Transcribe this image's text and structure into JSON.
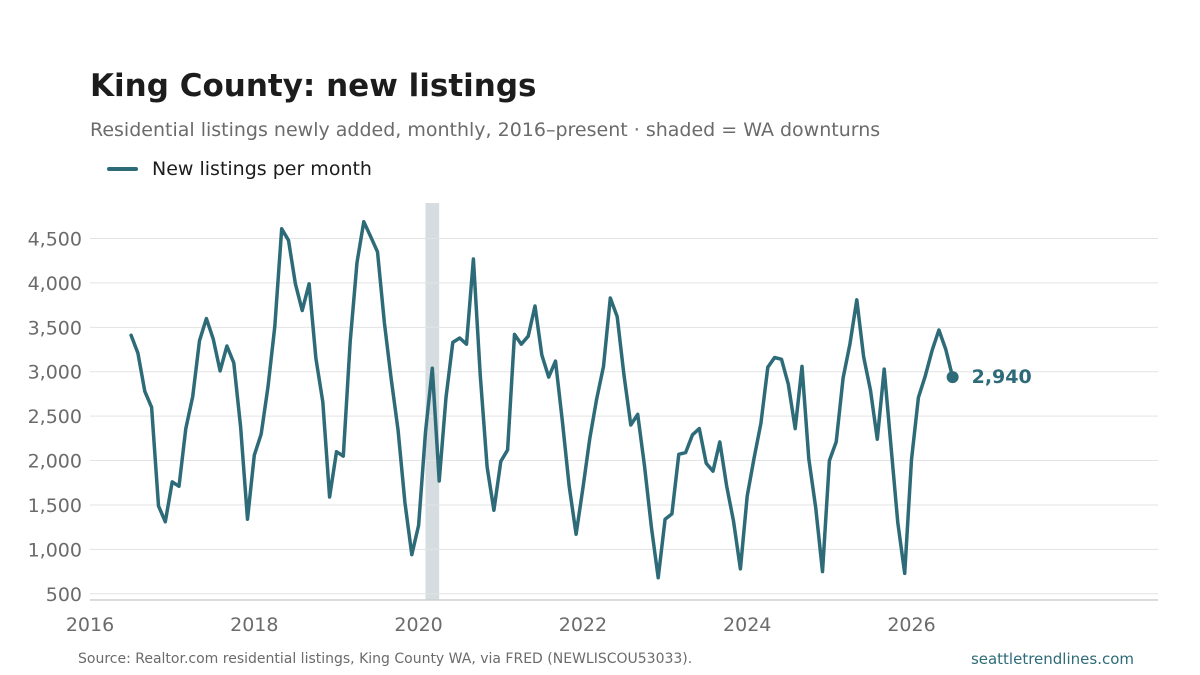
{
  "header": {
    "title": "King County: new listings",
    "subtitle": "Residential listings newly added, monthly, 2016–present · shaded = WA downturns"
  },
  "legend": {
    "label": "New listings per month"
  },
  "footer": {
    "source": "Source: Realtor.com residential listings, King County WA, via FRED (NEWLISCOU53033).",
    "site": "seattletrendlines.com"
  },
  "colors": {
    "line": "#2e6b78",
    "shade": "#d6dde1",
    "grid": "#e3e3e3",
    "axis_text": "#6b6b6b"
  },
  "chart_data": {
    "type": "line",
    "title": "King County: new listings",
    "xlabel": "",
    "ylabel": "",
    "xlim": [
      2016,
      2029
    ],
    "ylim": [
      430,
      4900
    ],
    "x_ticks": [
      2016,
      2018,
      2020,
      2022,
      2024,
      2026
    ],
    "x_tick_labels": [
      "2016",
      "2018",
      "2020",
      "2022",
      "2024",
      "2026"
    ],
    "y_ticks": [
      500,
      1000,
      1500,
      2000,
      2500,
      3000,
      3500,
      4000,
      4500
    ],
    "y_tick_labels": [
      "500",
      "1,000",
      "1,500",
      "2,000",
      "2,500",
      "3,000",
      "3,500",
      "4,000",
      "4,500"
    ],
    "grid": true,
    "legend_position": "top-left",
    "shaded_regions": [
      {
        "label": "WA downturn",
        "x_start": "2020-02",
        "x_end": "2020-04"
      }
    ],
    "end_label": "2,940",
    "series": [
      {
        "name": "New listings per month",
        "x": [
          "2016-07",
          "2016-08",
          "2016-09",
          "2016-10",
          "2016-11",
          "2016-12",
          "2017-01",
          "2017-02",
          "2017-03",
          "2017-04",
          "2017-05",
          "2017-06",
          "2017-07",
          "2017-08",
          "2017-09",
          "2017-10",
          "2017-11",
          "2017-12",
          "2018-01",
          "2018-02",
          "2018-03",
          "2018-04",
          "2018-05",
          "2018-06",
          "2018-07",
          "2018-08",
          "2018-09",
          "2018-10",
          "2018-11",
          "2018-12",
          "2019-01",
          "2019-02",
          "2019-03",
          "2019-04",
          "2019-05",
          "2019-06",
          "2019-07",
          "2019-08",
          "2019-09",
          "2019-10",
          "2019-11",
          "2019-12",
          "2020-01",
          "2020-02",
          "2020-03",
          "2020-04",
          "2020-05",
          "2020-06",
          "2020-07",
          "2020-08",
          "2020-09",
          "2020-10",
          "2020-11",
          "2020-12",
          "2021-01",
          "2021-02",
          "2021-03",
          "2021-04",
          "2021-05",
          "2021-06",
          "2021-07",
          "2021-08",
          "2021-09",
          "2021-10",
          "2021-11",
          "2021-12",
          "2022-01",
          "2022-02",
          "2022-03",
          "2022-04",
          "2022-05",
          "2022-06",
          "2022-07",
          "2022-08",
          "2022-09",
          "2022-10",
          "2022-11",
          "2022-12",
          "2023-01",
          "2023-02",
          "2023-03",
          "2023-04",
          "2023-05",
          "2023-06",
          "2023-07",
          "2023-08",
          "2023-09",
          "2023-10",
          "2023-11",
          "2023-12",
          "2024-01",
          "2024-02",
          "2024-03",
          "2024-04",
          "2024-05",
          "2024-06",
          "2024-07",
          "2024-08",
          "2024-09",
          "2024-10",
          "2024-11",
          "2024-12",
          "2025-01",
          "2025-02",
          "2025-03",
          "2025-04",
          "2025-05",
          "2025-06",
          "2025-07",
          "2025-08",
          "2025-09",
          "2025-10",
          "2025-11",
          "2025-12",
          "2026-01",
          "2026-02",
          "2026-03",
          "2026-04",
          "2026-05",
          "2026-06",
          "2026-07"
        ],
        "values": [
          3410,
          3210,
          2780,
          2600,
          1490,
          1310,
          1760,
          1710,
          2360,
          2720,
          3350,
          3600,
          3370,
          3010,
          3290,
          3100,
          2380,
          1340,
          2060,
          2300,
          2830,
          3510,
          4610,
          4480,
          3990,
          3690,
          3990,
          3150,
          2660,
          1590,
          2100,
          2050,
          3340,
          4230,
          4690,
          4520,
          4350,
          3550,
          2920,
          2340,
          1530,
          940,
          1270,
          2320,
          3040,
          1770,
          2710,
          3330,
          3380,
          3310,
          4270,
          2970,
          1930,
          1440,
          1990,
          2120,
          3420,
          3310,
          3400,
          3740,
          3190,
          2940,
          3120,
          2440,
          1710,
          1170,
          1690,
          2250,
          2690,
          3060,
          3830,
          3620,
          2960,
          2400,
          2520,
          1940,
          1250,
          680,
          1340,
          1400,
          2070,
          2090,
          2290,
          2360,
          1970,
          1880,
          2210,
          1710,
          1320,
          780,
          1600,
          2030,
          2420,
          3050,
          3160,
          3140,
          2860,
          2360,
          3060,
          2020,
          1470,
          750,
          2000,
          2210,
          2930,
          3310,
          3810,
          3170,
          2790,
          2240,
          3030,
          2160,
          1300,
          730,
          2010,
          2710,
          2950,
          3240,
          3470,
          3250,
          2940
        ]
      }
    ]
  }
}
